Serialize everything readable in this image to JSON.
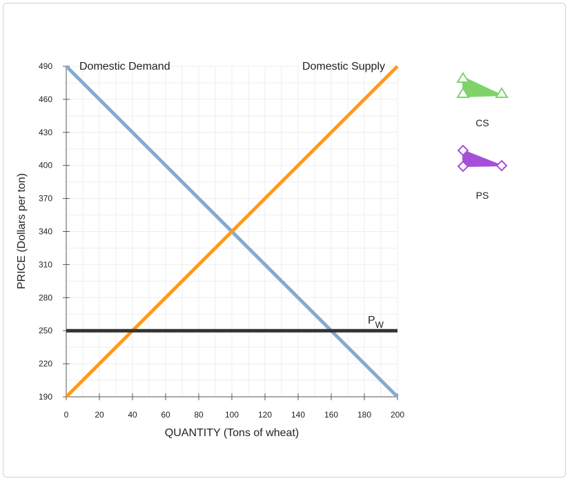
{
  "chart_data": {
    "type": "line",
    "xlabel": "QUANTITY (Tons of wheat)",
    "ylabel": "PRICE (Dollars per ton)",
    "xlim": [
      0,
      200
    ],
    "ylim": [
      190,
      490
    ],
    "xticks": [
      0,
      20,
      40,
      60,
      80,
      100,
      120,
      140,
      160,
      180,
      200
    ],
    "yticks": [
      190,
      220,
      250,
      280,
      310,
      340,
      370,
      400,
      430,
      460,
      490
    ],
    "grid": true,
    "series": [
      {
        "name": "Domestic Demand",
        "color": "#86a9d1",
        "x": [
          0,
          200
        ],
        "y": [
          490,
          190
        ]
      },
      {
        "name": "Domestic Supply",
        "color": "#ff9a1a",
        "x": [
          0,
          200
        ],
        "y": [
          190,
          490
        ]
      }
    ],
    "world_price": {
      "label_main": "P",
      "label_sub": "W",
      "value": 250,
      "color": "#333333"
    }
  },
  "legend_tools": [
    {
      "label": "CS",
      "icon": "cs-triangle-icon",
      "color": "#7fd36a",
      "stroke": "#7fd36a"
    },
    {
      "label": "PS",
      "icon": "ps-triangle-icon",
      "color": "#a64fd8",
      "stroke": "#a64fd8"
    }
  ]
}
